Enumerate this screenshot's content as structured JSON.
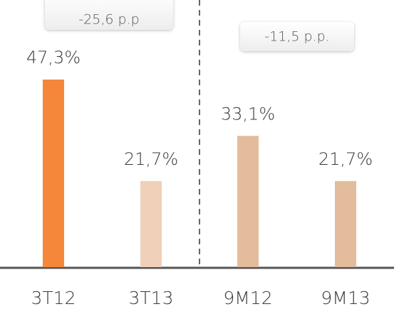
{
  "chart_data": {
    "type": "bar",
    "categories": [
      "3T12",
      "3T13",
      "9M12",
      "9M13"
    ],
    "values": [
      47.3,
      21.7,
      33.1,
      21.7
    ],
    "value_labels": [
      "47,3%",
      "21,7%",
      "33,1%",
      "21,7%"
    ],
    "colors": [
      "#f5873a",
      "#f0d0b8",
      "#e3bc9c",
      "#e3bc9c"
    ],
    "annotations": [
      "-25,6 p.p",
      "-11,5 p.p."
    ]
  }
}
